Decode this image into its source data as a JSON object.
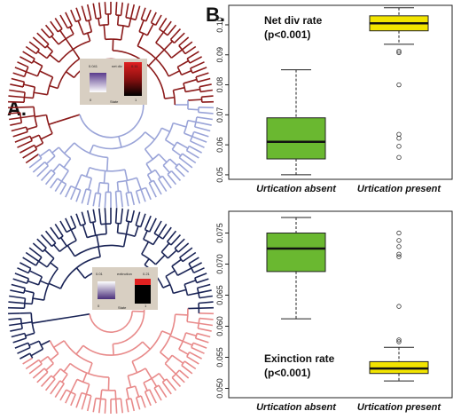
{
  "figure": {
    "panel_a_label": "A.",
    "panel_b_label": "B."
  },
  "trees": [
    {
      "name": "net-div-tree",
      "outer_color": "#8b1a1a",
      "inner_color": "#9aa4d8",
      "legend": {
        "min": "0.041",
        "max": "0.11",
        "title": "net div",
        "axis": "State",
        "left_tick": "0",
        "right_tick": "1"
      }
    },
    {
      "name": "extinction-tree",
      "outer_color": "#1a2456",
      "inner_color": "#e88a8a",
      "legend": {
        "min": "0.01",
        "max": "0.21",
        "title": "extinction",
        "axis": "State",
        "left_tick": "0",
        "right_tick": "1"
      }
    }
  ],
  "colors": {
    "absent_fill": "#6ab830",
    "present_fill": "#f2e400"
  },
  "chart_data": [
    {
      "type": "box",
      "annotation": [
        "Net div rate",
        "(p<0.001)"
      ],
      "categories": [
        "Urtication absent",
        "Urtication present"
      ],
      "ylim": [
        0.0485,
        0.1065
      ],
      "yticks": [
        0.05,
        0.06,
        0.07,
        0.08,
        0.09,
        0.1
      ],
      "ytick_labels": [
        "0.05",
        "0.06",
        "0.07",
        "0.08",
        "0.09",
        "0.10"
      ],
      "boxes": [
        {
          "category": "Urtication absent",
          "whisker_low": 0.05,
          "q1": 0.0553,
          "median": 0.061,
          "q3": 0.069,
          "whisker_high": 0.085,
          "outliers": []
        },
        {
          "category": "Urtication present",
          "whisker_low": 0.0935,
          "q1": 0.098,
          "median": 0.1005,
          "q3": 0.103,
          "whisker_high": 0.1057,
          "outliers": [
            0.0912,
            0.0907,
            0.08,
            0.0635,
            0.0622,
            0.0595,
            0.0558
          ]
        }
      ],
      "grid": false
    },
    {
      "type": "box",
      "annotation": [
        "Exinction rate",
        "(p<0.001)"
      ],
      "categories": [
        "Urtication absent",
        "Urtication present"
      ],
      "ylim": [
        0.0485,
        0.0785
      ],
      "yticks": [
        0.05,
        0.055,
        0.06,
        0.065,
        0.07,
        0.075
      ],
      "ytick_labels": [
        "0.050",
        "0.055",
        "0.060",
        "0.065",
        "0.070",
        "0.075"
      ],
      "boxes": [
        {
          "category": "Urtication absent",
          "whisker_low": 0.0612,
          "q1": 0.0688,
          "median": 0.0725,
          "q3": 0.075,
          "whisker_high": 0.0775,
          "outliers": []
        },
        {
          "category": "Urtication present",
          "whisker_low": 0.0512,
          "q1": 0.0524,
          "median": 0.0532,
          "q3": 0.0543,
          "whisker_high": 0.0566,
          "outliers": [
            0.075,
            0.0738,
            0.0728,
            0.0716,
            0.0712,
            0.0632,
            0.0578,
            0.0575
          ]
        }
      ],
      "grid": false
    }
  ]
}
